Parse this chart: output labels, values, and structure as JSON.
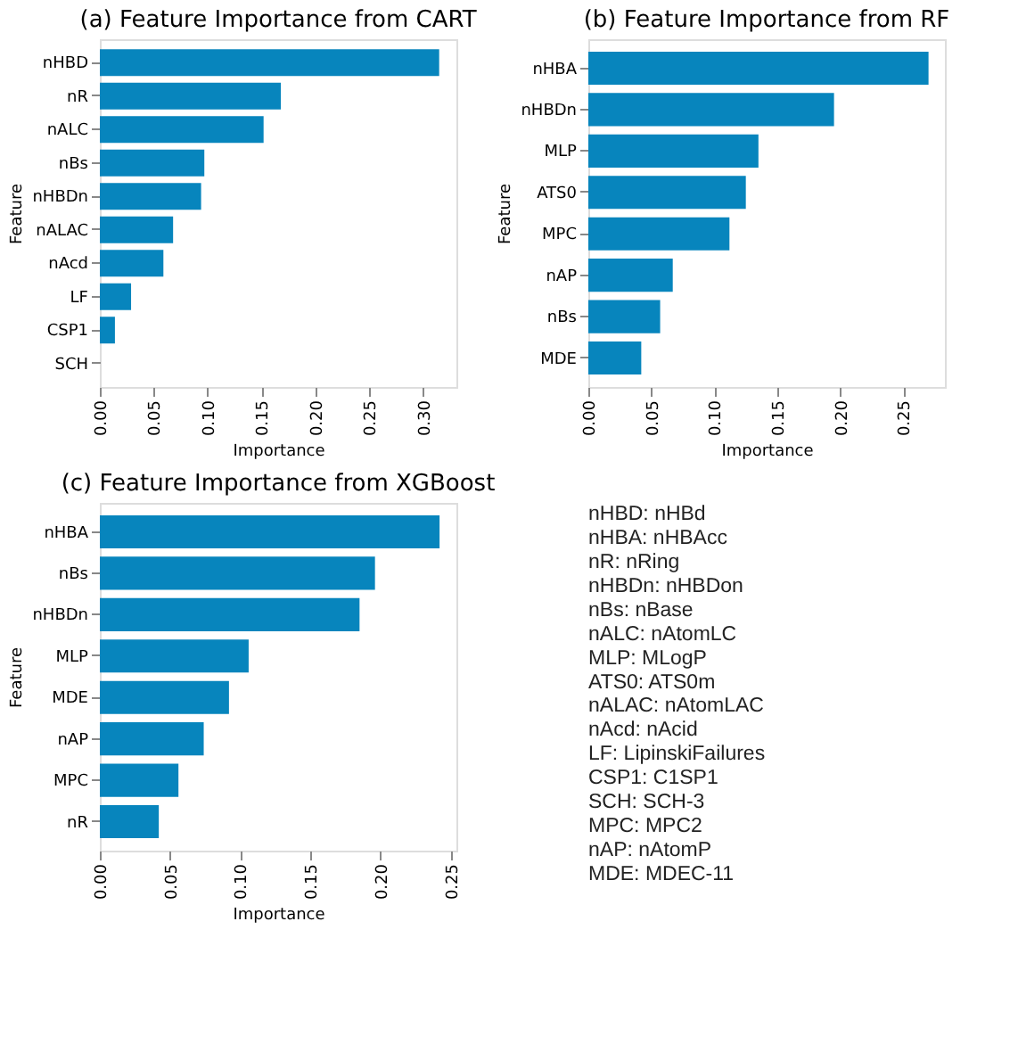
{
  "chart_data": [
    {
      "type": "bar",
      "orientation": "horizontal",
      "title": "(a) Feature Importance from CART",
      "xlabel": "Importance",
      "ylabel": "Feature",
      "categories": [
        "nHBD",
        "nR",
        "nALC",
        "nBs",
        "nHBDn",
        "nALAC",
        "nAcd",
        "LF",
        "CSP1",
        "SCH"
      ],
      "values": [
        0.315,
        0.168,
        0.152,
        0.097,
        0.094,
        0.068,
        0.059,
        0.029,
        0.014,
        0
      ],
      "color": "#0785bd",
      "xlim": [
        0,
        0.331
      ],
      "xticks": [
        {
          "value": 0,
          "label": "0.00"
        },
        0.05,
        {
          "value": 0.1,
          "label": "0.10"
        },
        0.15,
        {
          "value": 0.2,
          "label": "0.20"
        },
        0.25,
        {
          "value": 0.3,
          "label": "0.30"
        }
      ],
      "grid": false
    },
    {
      "type": "bar",
      "orientation": "horizontal",
      "title": "(b) Feature Importance from RF",
      "xlabel": "Importance",
      "ylabel": "Feature",
      "categories": [
        "nHBA",
        "nHBDn",
        "MLP",
        "ATS0",
        "MPC",
        "nAP",
        "nBs",
        "MDE"
      ],
      "values": [
        0.27,
        0.195,
        0.135,
        0.125,
        0.112,
        0.067,
        0.057,
        0.042
      ],
      "color": "#0785bd",
      "xlim": [
        0,
        0.283
      ],
      "xticks": [
        {
          "value": 0,
          "label": "0.00"
        },
        0.05,
        {
          "value": 0.1,
          "label": "0.10"
        },
        0.15,
        {
          "value": 0.2,
          "label": "0.20"
        },
        0.25
      ],
      "grid": false
    },
    {
      "type": "bar",
      "orientation": "horizontal",
      "title": "(c) Feature Importance from XGBoost",
      "xlabel": "Importance",
      "ylabel": "Feature",
      "categories": [
        "nHBA",
        "nBs",
        "nHBDn",
        "MLP",
        "MDE",
        "nAP",
        "MPC",
        "nR"
      ],
      "values": [
        0.242,
        0.196,
        0.185,
        0.106,
        0.092,
        0.074,
        0.056,
        0.042
      ],
      "color": "#0785bd",
      "xlim": [
        0,
        0.254
      ],
      "xticks": [
        {
          "value": 0,
          "label": "0.00"
        },
        0.05,
        {
          "value": 0.1,
          "label": "0.10"
        },
        0.15,
        {
          "value": 0.2,
          "label": "0.20"
        },
        0.25
      ],
      "grid": false
    },
    {
      "type": "other",
      "annotations": [
        "nHBD: nHBd",
        "nHBA: nHBAcc",
        "nR: nRing",
        "nHBDn: nHBDon",
        "nBs: nBase",
        "nALC: nAtomLC",
        "MLP: MLogP",
        "ATS0: ATS0m",
        "nALAC: nAtomLAC",
        "nAcd: nAcid",
        "LF: LipinskiFailures",
        "CSP1: C1SP1",
        "SCH: SCH-3",
        "MPC: MPC2",
        "nAP: nAtomP",
        "MDE: MDEC-11"
      ]
    }
  ]
}
